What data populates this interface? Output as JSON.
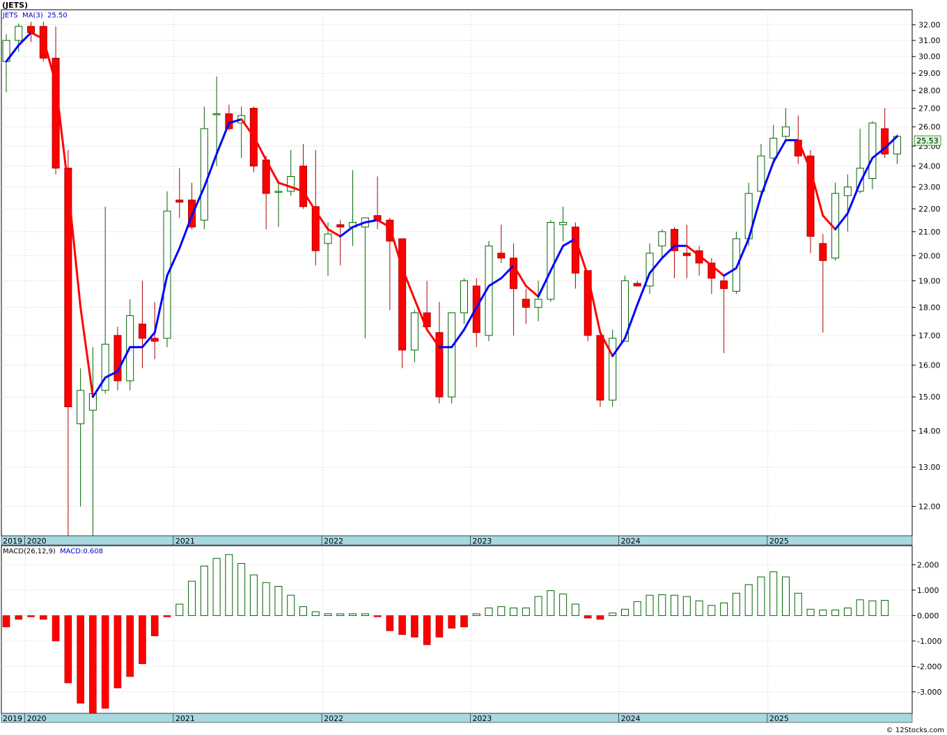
{
  "header": {
    "ticker_label": "(JETS)",
    "ma_label": "JETS  MA(3)  25.50",
    "macd_label": "MACD(26,12,9)",
    "macd_value_label": "MACD:0.608",
    "last_price_badge": "25.53",
    "footer_credit": "© 12Stocks.com"
  },
  "colors": {
    "up_candle_fill": "#ffffff",
    "up_candle_stroke": "#006400",
    "down_candle_fill": "#ff0000",
    "ma_up": "#0000ff",
    "ma_down": "#ff0000",
    "macd_pos_stroke": "#006400",
    "macd_neg_fill": "#ff0000",
    "axis_band": "#a8d8e0",
    "grid": "#cccccc",
    "badge": "#ccffcc"
  },
  "chart_data": [
    {
      "type": "candlestick",
      "title": "(JETS)",
      "scale": "log",
      "ylim": [
        11.3,
        33.0
      ],
      "y_ticks": [
        12.0,
        13.0,
        14.0,
        15.0,
        16.0,
        17.0,
        18.0,
        19.0,
        20.0,
        21.0,
        22.0,
        23.0,
        24.0,
        25.0,
        26.0,
        27.0,
        28.0,
        29.0,
        30.0,
        31.0,
        32.0
      ],
      "x_tick_labels": [
        "2019",
        "2020",
        "2021",
        "2022",
        "2023",
        "2024",
        "2025"
      ],
      "x_tick_months": [
        0,
        2,
        14,
        26,
        38,
        50,
        62
      ],
      "interval": "monthly",
      "first_month": "2019-11",
      "candles": [
        {
          "o": 29.7,
          "h": 31.4,
          "l": 27.9,
          "c": 31.0
        },
        {
          "o": 31.0,
          "h": 32.1,
          "l": 30.3,
          "c": 31.9
        },
        {
          "o": 31.9,
          "h": 32.2,
          "l": 30.9,
          "c": 31.5
        },
        {
          "o": 31.9,
          "h": 32.2,
          "l": 29.7,
          "c": 29.9
        },
        {
          "o": 29.9,
          "h": 31.9,
          "l": 23.6,
          "c": 23.9
        },
        {
          "o": 23.9,
          "h": 24.8,
          "l": 11.2,
          "c": 14.7
        },
        {
          "o": 14.2,
          "h": 15.9,
          "l": 12.0,
          "c": 15.2
        },
        {
          "o": 14.6,
          "h": 16.6,
          "l": 11.3,
          "c": 15.1
        },
        {
          "o": 15.2,
          "h": 22.1,
          "l": 15.1,
          "c": 16.7
        },
        {
          "o": 17.0,
          "h": 17.3,
          "l": 15.2,
          "c": 15.5
        },
        {
          "o": 15.5,
          "h": 18.3,
          "l": 15.2,
          "c": 17.7
        },
        {
          "o": 17.4,
          "h": 19.0,
          "l": 15.9,
          "c": 16.9
        },
        {
          "o": 16.9,
          "h": 18.2,
          "l": 16.2,
          "c": 16.8
        },
        {
          "o": 16.9,
          "h": 22.8,
          "l": 16.6,
          "c": 21.9
        },
        {
          "o": 22.4,
          "h": 23.9,
          "l": 21.6,
          "c": 22.3
        },
        {
          "o": 22.4,
          "h": 23.2,
          "l": 21.1,
          "c": 21.2
        },
        {
          "o": 21.5,
          "h": 27.1,
          "l": 21.1,
          "c": 25.9
        },
        {
          "o": 26.7,
          "h": 28.8,
          "l": 24.0,
          "c": 26.7
        },
        {
          "o": 26.7,
          "h": 27.2,
          "l": 25.8,
          "c": 25.9
        },
        {
          "o": 26.2,
          "h": 27.1,
          "l": 24.4,
          "c": 26.6
        },
        {
          "o": 27.0,
          "h": 27.1,
          "l": 23.7,
          "c": 24.0
        },
        {
          "o": 24.3,
          "h": 24.5,
          "l": 21.1,
          "c": 22.7
        },
        {
          "o": 22.8,
          "h": 23.2,
          "l": 21.2,
          "c": 22.8
        },
        {
          "o": 22.8,
          "h": 24.8,
          "l": 22.6,
          "c": 23.5
        },
        {
          "o": 24.0,
          "h": 25.1,
          "l": 22.0,
          "c": 22.1
        },
        {
          "o": 22.1,
          "h": 24.8,
          "l": 19.6,
          "c": 20.2
        },
        {
          "o": 20.5,
          "h": 21.4,
          "l": 19.2,
          "c": 20.9
        },
        {
          "o": 21.3,
          "h": 21.5,
          "l": 19.6,
          "c": 21.2
        },
        {
          "o": 21.2,
          "h": 23.8,
          "l": 20.4,
          "c": 21.4
        },
        {
          "o": 21.2,
          "h": 21.6,
          "l": 16.9,
          "c": 21.6
        },
        {
          "o": 21.7,
          "h": 23.5,
          "l": 21.1,
          "c": 21.5
        },
        {
          "o": 21.5,
          "h": 21.6,
          "l": 17.9,
          "c": 20.6
        },
        {
          "o": 20.7,
          "h": 20.7,
          "l": 15.9,
          "c": 16.5
        },
        {
          "o": 16.5,
          "h": 17.9,
          "l": 16.1,
          "c": 17.8
        },
        {
          "o": 17.8,
          "h": 19.0,
          "l": 17.2,
          "c": 17.3
        },
        {
          "o": 17.1,
          "h": 18.2,
          "l": 14.8,
          "c": 15.0
        },
        {
          "o": 15.0,
          "h": 17.7,
          "l": 14.8,
          "c": 17.8
        },
        {
          "o": 17.8,
          "h": 19.1,
          "l": 17.4,
          "c": 19.0
        },
        {
          "o": 18.8,
          "h": 19.1,
          "l": 16.6,
          "c": 17.1
        },
        {
          "o": 17.0,
          "h": 20.6,
          "l": 16.8,
          "c": 20.4
        },
        {
          "o": 20.1,
          "h": 21.3,
          "l": 19.7,
          "c": 19.9
        },
        {
          "o": 19.9,
          "h": 20.5,
          "l": 17.0,
          "c": 18.7
        },
        {
          "o": 18.3,
          "h": 18.7,
          "l": 17.4,
          "c": 18.0
        },
        {
          "o": 18.0,
          "h": 19.0,
          "l": 17.5,
          "c": 18.3
        },
        {
          "o": 18.3,
          "h": 21.5,
          "l": 18.2,
          "c": 21.4
        },
        {
          "o": 21.3,
          "h": 22.1,
          "l": 20.6,
          "c": 21.4
        },
        {
          "o": 21.2,
          "h": 21.4,
          "l": 18.7,
          "c": 19.3
        },
        {
          "o": 19.4,
          "h": 19.4,
          "l": 16.8,
          "c": 17.0
        },
        {
          "o": 17.0,
          "h": 17.0,
          "l": 14.7,
          "c": 14.9
        },
        {
          "o": 14.9,
          "h": 17.2,
          "l": 14.7,
          "c": 16.9
        },
        {
          "o": 16.8,
          "h": 19.2,
          "l": 16.8,
          "c": 19.0
        },
        {
          "o": 18.9,
          "h": 19.0,
          "l": 18.8,
          "c": 18.8
        },
        {
          "o": 18.8,
          "h": 20.5,
          "l": 18.5,
          "c": 20.1
        },
        {
          "o": 20.4,
          "h": 21.1,
          "l": 19.9,
          "c": 21.0
        },
        {
          "o": 21.1,
          "h": 21.2,
          "l": 19.1,
          "c": 20.2
        },
        {
          "o": 20.1,
          "h": 21.3,
          "l": 19.1,
          "c": 20.0
        },
        {
          "o": 20.2,
          "h": 20.4,
          "l": 19.2,
          "c": 19.7
        },
        {
          "o": 19.7,
          "h": 19.9,
          "l": 18.5,
          "c": 19.1
        },
        {
          "o": 19.0,
          "h": 19.2,
          "l": 16.4,
          "c": 18.7
        },
        {
          "o": 18.6,
          "h": 21.0,
          "l": 18.5,
          "c": 20.7
        },
        {
          "o": 20.7,
          "h": 23.2,
          "l": 20.4,
          "c": 22.7
        },
        {
          "o": 22.8,
          "h": 25.1,
          "l": 22.7,
          "c": 24.5
        },
        {
          "o": 24.4,
          "h": 26.1,
          "l": 24.2,
          "c": 25.4
        },
        {
          "o": 25.5,
          "h": 27.0,
          "l": 25.4,
          "c": 26.0
        },
        {
          "o": 25.3,
          "h": 26.6,
          "l": 24.1,
          "c": 24.5
        },
        {
          "o": 24.5,
          "h": 24.8,
          "l": 20.1,
          "c": 20.8
        },
        {
          "o": 20.5,
          "h": 20.9,
          "l": 17.1,
          "c": 19.8
        },
        {
          "o": 19.9,
          "h": 23.2,
          "l": 19.8,
          "c": 22.7
        },
        {
          "o": 22.6,
          "h": 23.6,
          "l": 21.0,
          "c": 23.0
        },
        {
          "o": 22.8,
          "h": 25.9,
          "l": 22.7,
          "c": 23.9
        },
        {
          "o": 23.4,
          "h": 26.3,
          "l": 22.9,
          "c": 26.2
        },
        {
          "o": 25.9,
          "h": 27.0,
          "l": 24.4,
          "c": 24.6
        },
        {
          "o": 24.6,
          "h": 25.6,
          "l": 24.1,
          "c": 25.5
        }
      ],
      "ma_series": {
        "name": "MA(3)",
        "values": [
          29.7,
          30.7,
          31.5,
          31.1,
          28.4,
          23.0,
          18.0,
          15.0,
          15.6,
          15.8,
          16.6,
          16.6,
          17.1,
          19.2,
          20.3,
          21.7,
          23.0,
          24.6,
          26.2,
          26.4,
          25.5,
          24.3,
          23.2,
          23.0,
          22.8,
          21.9,
          21.1,
          20.8,
          21.2,
          21.4,
          21.5,
          21.2,
          19.5,
          18.3,
          17.2,
          16.6,
          16.6,
          17.2,
          18.0,
          18.8,
          19.1,
          19.6,
          18.8,
          18.4,
          19.4,
          20.4,
          20.7,
          19.2,
          17.1,
          16.3,
          16.9,
          18.1,
          19.3,
          19.9,
          20.4,
          20.4,
          20.0,
          19.6,
          19.2,
          19.5,
          20.7,
          22.6,
          24.2,
          25.3,
          25.3,
          23.8,
          21.7,
          21.1,
          21.8,
          23.2,
          24.4,
          24.9,
          25.5
        ]
      }
    },
    {
      "type": "bar",
      "title": "MACD(26,12,9)",
      "ylim": [
        -3.85,
        2.75
      ],
      "y_ticks": [
        -3.0,
        -2.0,
        -1.0,
        0.0,
        1.0,
        2.0
      ],
      "y_tick_labels": [
        "-3.000",
        "-2.000",
        "-1.000",
        "0.000",
        "1.000",
        "2.000"
      ],
      "x_tick_labels": [
        "2019",
        "2020",
        "2021",
        "2022",
        "2023",
        "2024",
        "2025"
      ],
      "values": [
        -0.45,
        -0.15,
        -0.05,
        -0.15,
        -1.0,
        -2.65,
        -3.45,
        -3.85,
        -3.65,
        -2.85,
        -2.4,
        -1.9,
        -0.8,
        -0.05,
        0.45,
        1.35,
        1.95,
        2.25,
        2.4,
        2.05,
        1.6,
        1.3,
        1.15,
        0.8,
        0.35,
        0.15,
        0.07,
        0.07,
        0.07,
        0.07,
        -0.05,
        -0.6,
        -0.75,
        -0.85,
        -1.15,
        -0.85,
        -0.5,
        -0.45,
        0.07,
        0.3,
        0.35,
        0.3,
        0.3,
        0.75,
        0.98,
        0.85,
        0.45,
        -0.1,
        -0.15,
        0.1,
        0.25,
        0.55,
        0.8,
        0.82,
        0.8,
        0.75,
        0.58,
        0.4,
        0.5,
        0.88,
        1.22,
        1.52,
        1.72,
        1.52,
        0.88,
        0.25,
        0.22,
        0.22,
        0.3,
        0.62,
        0.58,
        0.6
      ]
    }
  ]
}
